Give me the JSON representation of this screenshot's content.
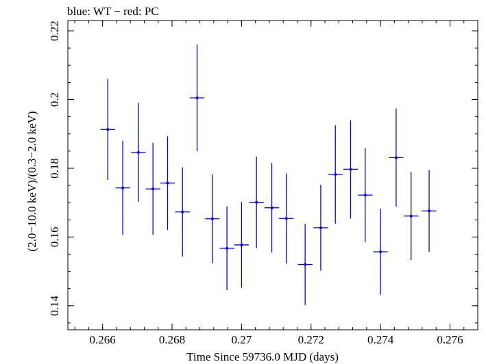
{
  "chart_data": {
    "type": "scatter",
    "title": "blue: WT − red: PC",
    "xlabel": "Time Since 59736.0 MJD (days)",
    "ylabel": "(2.0−10.0 keV)/(0.3−2.0 keV)",
    "xlim": [
      0.265,
      0.2768
    ],
    "ylim": [
      0.133,
      0.223
    ],
    "xticks": [
      {
        "value": 0.266,
        "label": "0.266"
      },
      {
        "value": 0.268,
        "label": "0.268"
      },
      {
        "value": 0.27,
        "label": "0.27"
      },
      {
        "value": 0.272,
        "label": "0.272"
      },
      {
        "value": 0.274,
        "label": "0.274"
      },
      {
        "value": 0.276,
        "label": "0.276"
      }
    ],
    "yticks": [
      {
        "value": 0.14,
        "label": "0.14"
      },
      {
        "value": 0.16,
        "label": "0.16"
      },
      {
        "value": 0.18,
        "label": "0.18"
      },
      {
        "value": 0.2,
        "label": "0.2"
      },
      {
        "value": 0.22,
        "label": "0.22"
      }
    ],
    "color": "#0000ee",
    "series": [
      {
        "points": [
          {
            "x": 0.26615,
            "y": 0.1913,
            "xerr": 0.00021,
            "yerr": 0.0147
          },
          {
            "x": 0.26658,
            "y": 0.1743,
            "xerr": 0.00021,
            "yerr": 0.0137
          },
          {
            "x": 0.26703,
            "y": 0.1846,
            "xerr": 0.00021,
            "yerr": 0.0144
          },
          {
            "x": 0.26745,
            "y": 0.174,
            "xerr": 0.00021,
            "yerr": 0.0134
          },
          {
            "x": 0.26787,
            "y": 0.1757,
            "xerr": 0.00021,
            "yerr": 0.0136
          },
          {
            "x": 0.2683,
            "y": 0.1673,
            "xerr": 0.00021,
            "yerr": 0.013
          },
          {
            "x": 0.26872,
            "y": 0.2005,
            "xerr": 0.00021,
            "yerr": 0.0155
          },
          {
            "x": 0.26916,
            "y": 0.1653,
            "xerr": 0.00021,
            "yerr": 0.0129
          },
          {
            "x": 0.26958,
            "y": 0.1567,
            "xerr": 0.00021,
            "yerr": 0.0122
          },
          {
            "x": 0.27,
            "y": 0.1577,
            "xerr": 0.00021,
            "yerr": 0.0125
          },
          {
            "x": 0.27043,
            "y": 0.1701,
            "xerr": 0.00021,
            "yerr": 0.0133
          },
          {
            "x": 0.27087,
            "y": 0.1685,
            "xerr": 0.00021,
            "yerr": 0.013
          },
          {
            "x": 0.27129,
            "y": 0.1654,
            "xerr": 0.00021,
            "yerr": 0.0131
          },
          {
            "x": 0.27183,
            "y": 0.152,
            "xerr": 0.00021,
            "yerr": 0.0118
          },
          {
            "x": 0.27228,
            "y": 0.1627,
            "xerr": 0.00021,
            "yerr": 0.0125
          },
          {
            "x": 0.2727,
            "y": 0.1782,
            "xerr": 0.00021,
            "yerr": 0.0143
          },
          {
            "x": 0.27314,
            "y": 0.1797,
            "xerr": 0.00021,
            "yerr": 0.0143
          },
          {
            "x": 0.27356,
            "y": 0.1722,
            "xerr": 0.00021,
            "yerr": 0.0137
          },
          {
            "x": 0.274,
            "y": 0.1557,
            "xerr": 0.00021,
            "yerr": 0.0125
          },
          {
            "x": 0.27445,
            "y": 0.1831,
            "xerr": 0.00021,
            "yerr": 0.0143
          },
          {
            "x": 0.27488,
            "y": 0.1661,
            "xerr": 0.00021,
            "yerr": 0.0128
          },
          {
            "x": 0.2754,
            "y": 0.1676,
            "xerr": 0.00021,
            "yerr": 0.0119
          }
        ]
      }
    ]
  }
}
